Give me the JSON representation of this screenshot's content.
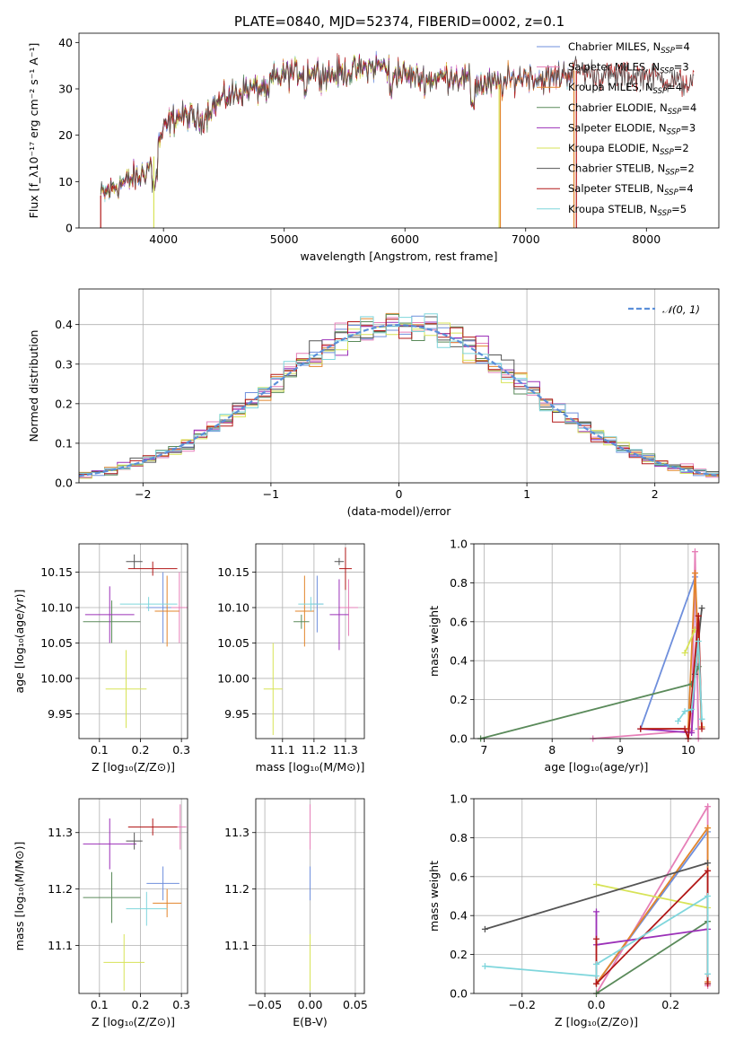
{
  "figure_title": "PLATE=0840, MJD=52374, FIBERID=0002, z=0.1",
  "colors": {
    "Chabrier MILES": "#6f8fdc",
    "Salpeter MILES": "#e67fb8",
    "Kroupa MILES": "#e2852b",
    "Chabrier ELODIE": "#5a8a5a",
    "Salpeter ELODIE": "#9b30b8",
    "Kroupa ELODIE": "#d7e357",
    "Chabrier STELIB": "#555555",
    "Salpeter STELIB": "#b21818",
    "Kroupa STELIB": "#7fd6dc"
  },
  "chart_data": [
    {
      "id": "spectrum",
      "type": "line",
      "xlabel": "wavelength [Angstrom, rest frame]",
      "ylabel": "Flux [f_λ 10^-17 erg cm^-2 s^-1 A^-1]",
      "xlim": [
        3300,
        8600
      ],
      "ylim": [
        0,
        42
      ],
      "xticks": [
        "4000",
        "5000",
        "6000",
        "7000",
        "8000"
      ],
      "yticks": [
        "0",
        "10",
        "20",
        "30",
        "40"
      ],
      "grid": false,
      "legend_position": "right",
      "legend": [
        {
          "label": "Chabrier MILES, N_SSP=4",
          "series": "Chabrier MILES"
        },
        {
          "label": "Salpeter MILES, N_SSP=3",
          "series": "Salpeter MILES"
        },
        {
          "label": "Kroupa MILES, N_SSP=4",
          "series": "Kroupa MILES"
        },
        {
          "label": "Chabrier ELODIE, N_SSP=4",
          "series": "Chabrier ELODIE"
        },
        {
          "label": "Salpeter ELODIE, N_SSP=3",
          "series": "Salpeter ELODIE"
        },
        {
          "label": "Kroupa ELODIE, N_SSP=2",
          "series": "Kroupa ELODIE"
        },
        {
          "label": "Chabrier STELIB, N_SSP=2",
          "series": "Chabrier STELIB"
        },
        {
          "label": "Salpeter STELIB, N_SSP=4",
          "series": "Salpeter STELIB"
        },
        {
          "label": "Kroupa STELIB, N_SSP=5",
          "series": "Kroupa STELIB"
        }
      ],
      "continuum": {
        "x": [
          3480,
          3600,
          3700,
          3800,
          3900,
          4000,
          4100,
          4200,
          4300,
          4400,
          4500,
          4600,
          4700,
          4800,
          4900,
          5000,
          5200,
          5400,
          5600,
          5800,
          6000,
          6200,
          6400,
          6600,
          6800,
          7000,
          7200,
          7400,
          7600,
          7800,
          8000,
          8200,
          8400
        ],
        "y": [
          7,
          9,
          10,
          11,
          14,
          21,
          24,
          24,
          23,
          26,
          28,
          29,
          30,
          30,
          32,
          33,
          34,
          33,
          34,
          35,
          33,
          32,
          33,
          31,
          31,
          33,
          32,
          34,
          33,
          33,
          33,
          32,
          31
        ]
      },
      "dropouts": [
        {
          "series": "Salpeter STELIB",
          "x": 3480
        },
        {
          "series": "Kroupa ELODIE",
          "x": 3920
        },
        {
          "series": "Kroupa ELODIE",
          "x": 6780
        },
        {
          "series": "Kroupa MILES",
          "x": 6790
        },
        {
          "series": "Kroupa MILES",
          "x": 7400
        },
        {
          "series": "Salpeter STELIB",
          "x": 7420
        }
      ]
    },
    {
      "id": "residuals",
      "type": "histogram",
      "xlabel": "(data-model)/error",
      "ylabel": "Normed distribution",
      "xlim": [
        -2.5,
        2.5
      ],
      "ylim": [
        0,
        0.49
      ],
      "xticks": [
        "−2",
        "−1",
        "0",
        "1",
        "2"
      ],
      "yticks": [
        "0.0",
        "0.1",
        "0.2",
        "0.3",
        "0.4"
      ],
      "grid": true,
      "legend_label": "𝒩(0, 1)",
      "legend_position": "top-right",
      "bin_width": 0.1,
      "bin_start": -2.5,
      "reference": "normal(0,1)"
    },
    {
      "id": "age_vs_Z",
      "type": "errorbar",
      "xlabel": "Z [log10(Z/Z⊙)]",
      "ylabel": "age  [log10(age/yr)]",
      "xlim": [
        0.05,
        0.315
      ],
      "ylim": [
        9.915,
        10.19
      ],
      "xticks": [
        "0.1",
        "0.2",
        "0.3"
      ],
      "yticks": [
        "9.95",
        "10.00",
        "10.05",
        "10.10",
        "10.15"
      ],
      "points": [
        {
          "series": "Chabrier MILES",
          "x": 0.255,
          "xerr": 0.04,
          "y": 10.1,
          "yerr": 0.05
        },
        {
          "series": "Salpeter MILES",
          "x": 0.295,
          "xerr": 0.02,
          "y": 10.1,
          "yerr": 0.05
        },
        {
          "series": "Kroupa MILES",
          "x": 0.265,
          "xerr": 0.03,
          "y": 10.095,
          "yerr": 0.05
        },
        {
          "series": "Chabrier ELODIE",
          "x": 0.13,
          "xerr": 0.07,
          "y": 10.08,
          "yerr": 0.03
        },
        {
          "series": "Salpeter ELODIE",
          "x": 0.125,
          "xerr": 0.06,
          "y": 10.09,
          "yerr": 0.04
        },
        {
          "series": "Kroupa ELODIE",
          "x": 0.165,
          "xerr": 0.05,
          "y": 9.985,
          "yerr": 0.055
        },
        {
          "series": "Chabrier STELIB",
          "x": 0.185,
          "xerr": 0.02,
          "y": 10.165,
          "yerr": 0.01
        },
        {
          "series": "Salpeter STELIB",
          "x": 0.23,
          "xerr": 0.06,
          "y": 10.155,
          "yerr": 0.01
        },
        {
          "series": "Kroupa STELIB",
          "x": 0.22,
          "xerr": 0.07,
          "y": 10.105,
          "yerr": 0.01
        }
      ]
    },
    {
      "id": "age_vs_mass",
      "type": "errorbar",
      "xlabel": "mass [log10(M/M⊙)]",
      "ylabel": "",
      "xlim": [
        11.015,
        11.36
      ],
      "ylim": [
        9.915,
        10.19
      ],
      "xticks": [
        "11.1",
        "11.2",
        "11.3"
      ],
      "yticks": [
        "9.95",
        "10.00",
        "10.05",
        "10.10",
        "10.15"
      ],
      "points": [
        {
          "series": "Chabrier MILES",
          "x": 11.21,
          "xerr": 0.02,
          "y": 10.105,
          "yerr": 0.04
        },
        {
          "series": "Salpeter MILES",
          "x": 11.31,
          "xerr": 0.03,
          "y": 10.1,
          "yerr": 0.04
        },
        {
          "series": "Kroupa MILES",
          "x": 11.17,
          "xerr": 0.03,
          "y": 10.095,
          "yerr": 0.05
        },
        {
          "series": "Chabrier ELODIE",
          "x": 11.16,
          "xerr": 0.025,
          "y": 10.08,
          "yerr": 0.01
        },
        {
          "series": "Salpeter ELODIE",
          "x": 11.28,
          "xerr": 0.03,
          "y": 10.09,
          "yerr": 0.05
        },
        {
          "series": "Kroupa ELODIE",
          "x": 11.07,
          "xerr": 0.03,
          "y": 9.985,
          "yerr": 0.065
        },
        {
          "series": "Chabrier STELIB",
          "x": 11.28,
          "xerr": 0.015,
          "y": 10.165,
          "yerr": 0.005
        },
        {
          "series": "Salpeter STELIB",
          "x": 11.3,
          "xerr": 0.02,
          "y": 10.155,
          "yerr": 0.03
        },
        {
          "series": "Kroupa STELIB",
          "x": 11.19,
          "xerr": 0.04,
          "y": 10.105,
          "yerr": 0.01
        }
      ]
    },
    {
      "id": "mw_vs_age",
      "type": "line",
      "xlabel": "age  [log10(age/yr)]",
      "ylabel": "mass weight",
      "xlim": [
        6.85,
        10.45
      ],
      "ylim": [
        0,
        1
      ],
      "xticks": [
        "7",
        "8",
        "9",
        "10"
      ],
      "yticks": [
        "0.0",
        "0.2",
        "0.4",
        "0.6",
        "0.8",
        "1.0"
      ],
      "grid": true,
      "series": [
        {
          "name": "Chabrier MILES",
          "x": [
            9.3,
            10.1,
            10.15
          ],
          "y": [
            0.05,
            0.83,
            0.05
          ]
        },
        {
          "name": "Salpeter MILES",
          "x": [
            8.6,
            10.05,
            10.1,
            10.15
          ],
          "y": [
            0.0,
            0.04,
            0.96,
            0.0
          ]
        },
        {
          "name": "Kroupa MILES",
          "x": [
            9.3,
            10.0,
            10.1,
            10.2
          ],
          "y": [
            0.05,
            0.05,
            0.85,
            0.06
          ]
        },
        {
          "name": "Chabrier ELODIE",
          "x": [
            6.95,
            10.05,
            10.15
          ],
          "y": [
            0.0,
            0.28,
            0.37
          ]
        },
        {
          "name": "Salpeter ELODIE",
          "x": [
            9.3,
            10.05,
            10.1
          ],
          "y": [
            0.05,
            0.03,
            0.33
          ]
        },
        {
          "name": "Kroupa ELODIE",
          "x": [
            9.95,
            10.1
          ],
          "y": [
            0.44,
            0.56
          ]
        },
        {
          "name": "Chabrier STELIB",
          "x": [
            10.1,
            10.2
          ],
          "y": [
            0.33,
            0.67
          ]
        },
        {
          "name": "Salpeter STELIB",
          "x": [
            9.3,
            9.95,
            10.0,
            10.15,
            10.2
          ],
          "y": [
            0.05,
            0.05,
            0.0,
            0.63,
            0.05
          ]
        },
        {
          "name": "Kroupa STELIB",
          "x": [
            9.85,
            9.95,
            10.05,
            10.15,
            10.2
          ],
          "y": [
            0.09,
            0.14,
            0.15,
            0.5,
            0.1
          ]
        }
      ]
    },
    {
      "id": "mass_vs_Z",
      "type": "errorbar",
      "xlabel": "Z [log10(Z/Z⊙)]",
      "ylabel": "mass [log10(M/M⊙)]",
      "xlim": [
        0.05,
        0.315
      ],
      "ylim": [
        11.015,
        11.36
      ],
      "xticks": [
        "0.1",
        "0.2",
        "0.3"
      ],
      "yticks": [
        "11.1",
        "11.2",
        "11.3"
      ],
      "points": [
        {
          "series": "Chabrier MILES",
          "x": 0.255,
          "xerr": 0.04,
          "y": 11.21,
          "yerr": 0.03
        },
        {
          "series": "Salpeter MILES",
          "x": 0.297,
          "xerr": 0.015,
          "y": 11.31,
          "yerr": 0.04
        },
        {
          "series": "Kroupa MILES",
          "x": 0.265,
          "xerr": 0.035,
          "y": 11.175,
          "yerr": 0.025
        },
        {
          "series": "Chabrier ELODIE",
          "x": 0.13,
          "xerr": 0.07,
          "y": 11.185,
          "yerr": 0.045
        },
        {
          "series": "Salpeter ELODIE",
          "x": 0.125,
          "xerr": 0.065,
          "y": 11.28,
          "yerr": 0.045
        },
        {
          "series": "Kroupa ELODIE",
          "x": 0.16,
          "xerr": 0.05,
          "y": 11.07,
          "yerr": 0.05
        },
        {
          "series": "Chabrier STELIB",
          "x": 0.185,
          "xerr": 0.02,
          "y": 11.285,
          "yerr": 0.015
        },
        {
          "series": "Salpeter STELIB",
          "x": 0.23,
          "xerr": 0.06,
          "y": 11.31,
          "yerr": 0.015
        },
        {
          "series": "Kroupa STELIB",
          "x": 0.215,
          "xerr": 0.05,
          "y": 11.165,
          "yerr": 0.03
        }
      ]
    },
    {
      "id": "mass_vs_ebv",
      "type": "errorbar",
      "xlabel": "E(B-V)",
      "ylabel": "",
      "xlim": [
        -0.06,
        0.06
      ],
      "ylim": [
        11.015,
        11.36
      ],
      "xticks": [
        "−0.05",
        "0.00",
        "0.05"
      ],
      "yticks": [
        "11.1",
        "11.2",
        "11.3"
      ],
      "points": [
        {
          "series": "Kroupa ELODIE",
          "x": 0,
          "xerr": 0,
          "y": 11.07,
          "yerr": 0.05
        },
        {
          "series": "Chabrier MILES",
          "x": 0,
          "xerr": 0,
          "y": 11.21,
          "yerr": 0.03
        },
        {
          "series": "Salpeter STELIB",
          "x": 0,
          "xerr": 0,
          "y": 11.31,
          "yerr": 0.02
        },
        {
          "series": "Salpeter MILES",
          "x": 0,
          "xerr": 0,
          "y": 11.31,
          "yerr": 0.04
        }
      ]
    },
    {
      "id": "mw_vs_Z",
      "type": "line",
      "xlabel": "Z [log10(Z/Z⊙)]",
      "ylabel": "mass weight",
      "xlim": [
        -0.33,
        0.33
      ],
      "ylim": [
        0,
        1
      ],
      "xticks": [
        "−0.2",
        "0.0",
        "0.2"
      ],
      "yticks": [
        "0.0",
        "0.2",
        "0.4",
        "0.6",
        "0.8",
        "1.0"
      ],
      "grid": true,
      "series": [
        {
          "name": "Chabrier MILES",
          "x": [
            0.0,
            0.3,
            0.3
          ],
          "y": [
            0.05,
            0.83,
            0.05
          ]
        },
        {
          "name": "Salpeter MILES",
          "x": [
            0.0,
            0.3,
            0.3
          ],
          "y": [
            0.0,
            0.96,
            0.04
          ]
        },
        {
          "name": "Kroupa MILES",
          "x": [
            0.0,
            0.3,
            0.3
          ],
          "y": [
            0.05,
            0.85,
            0.06
          ]
        },
        {
          "name": "Chabrier ELODIE",
          "x": [
            0.0,
            0.3
          ],
          "y": [
            0.0,
            0.37
          ]
        },
        {
          "name": "Salpeter ELODIE",
          "x": [
            0.0,
            0.0,
            0.3
          ],
          "y": [
            0.42,
            0.25,
            0.33
          ]
        },
        {
          "name": "Kroupa ELODIE",
          "x": [
            0.0,
            0.3
          ],
          "y": [
            0.56,
            0.44
          ]
        },
        {
          "name": "Chabrier STELIB",
          "x": [
            -0.3,
            0.3
          ],
          "y": [
            0.33,
            0.67
          ]
        },
        {
          "name": "Salpeter STELIB",
          "x": [
            0.0,
            0.0,
            0.3,
            0.3
          ],
          "y": [
            0.28,
            0.05,
            0.63,
            0.05
          ]
        },
        {
          "name": "Kroupa STELIB",
          "x": [
            -0.3,
            0.0,
            0.0,
            0.3,
            0.3
          ],
          "y": [
            0.14,
            0.09,
            0.15,
            0.5,
            0.1
          ]
        }
      ]
    }
  ]
}
